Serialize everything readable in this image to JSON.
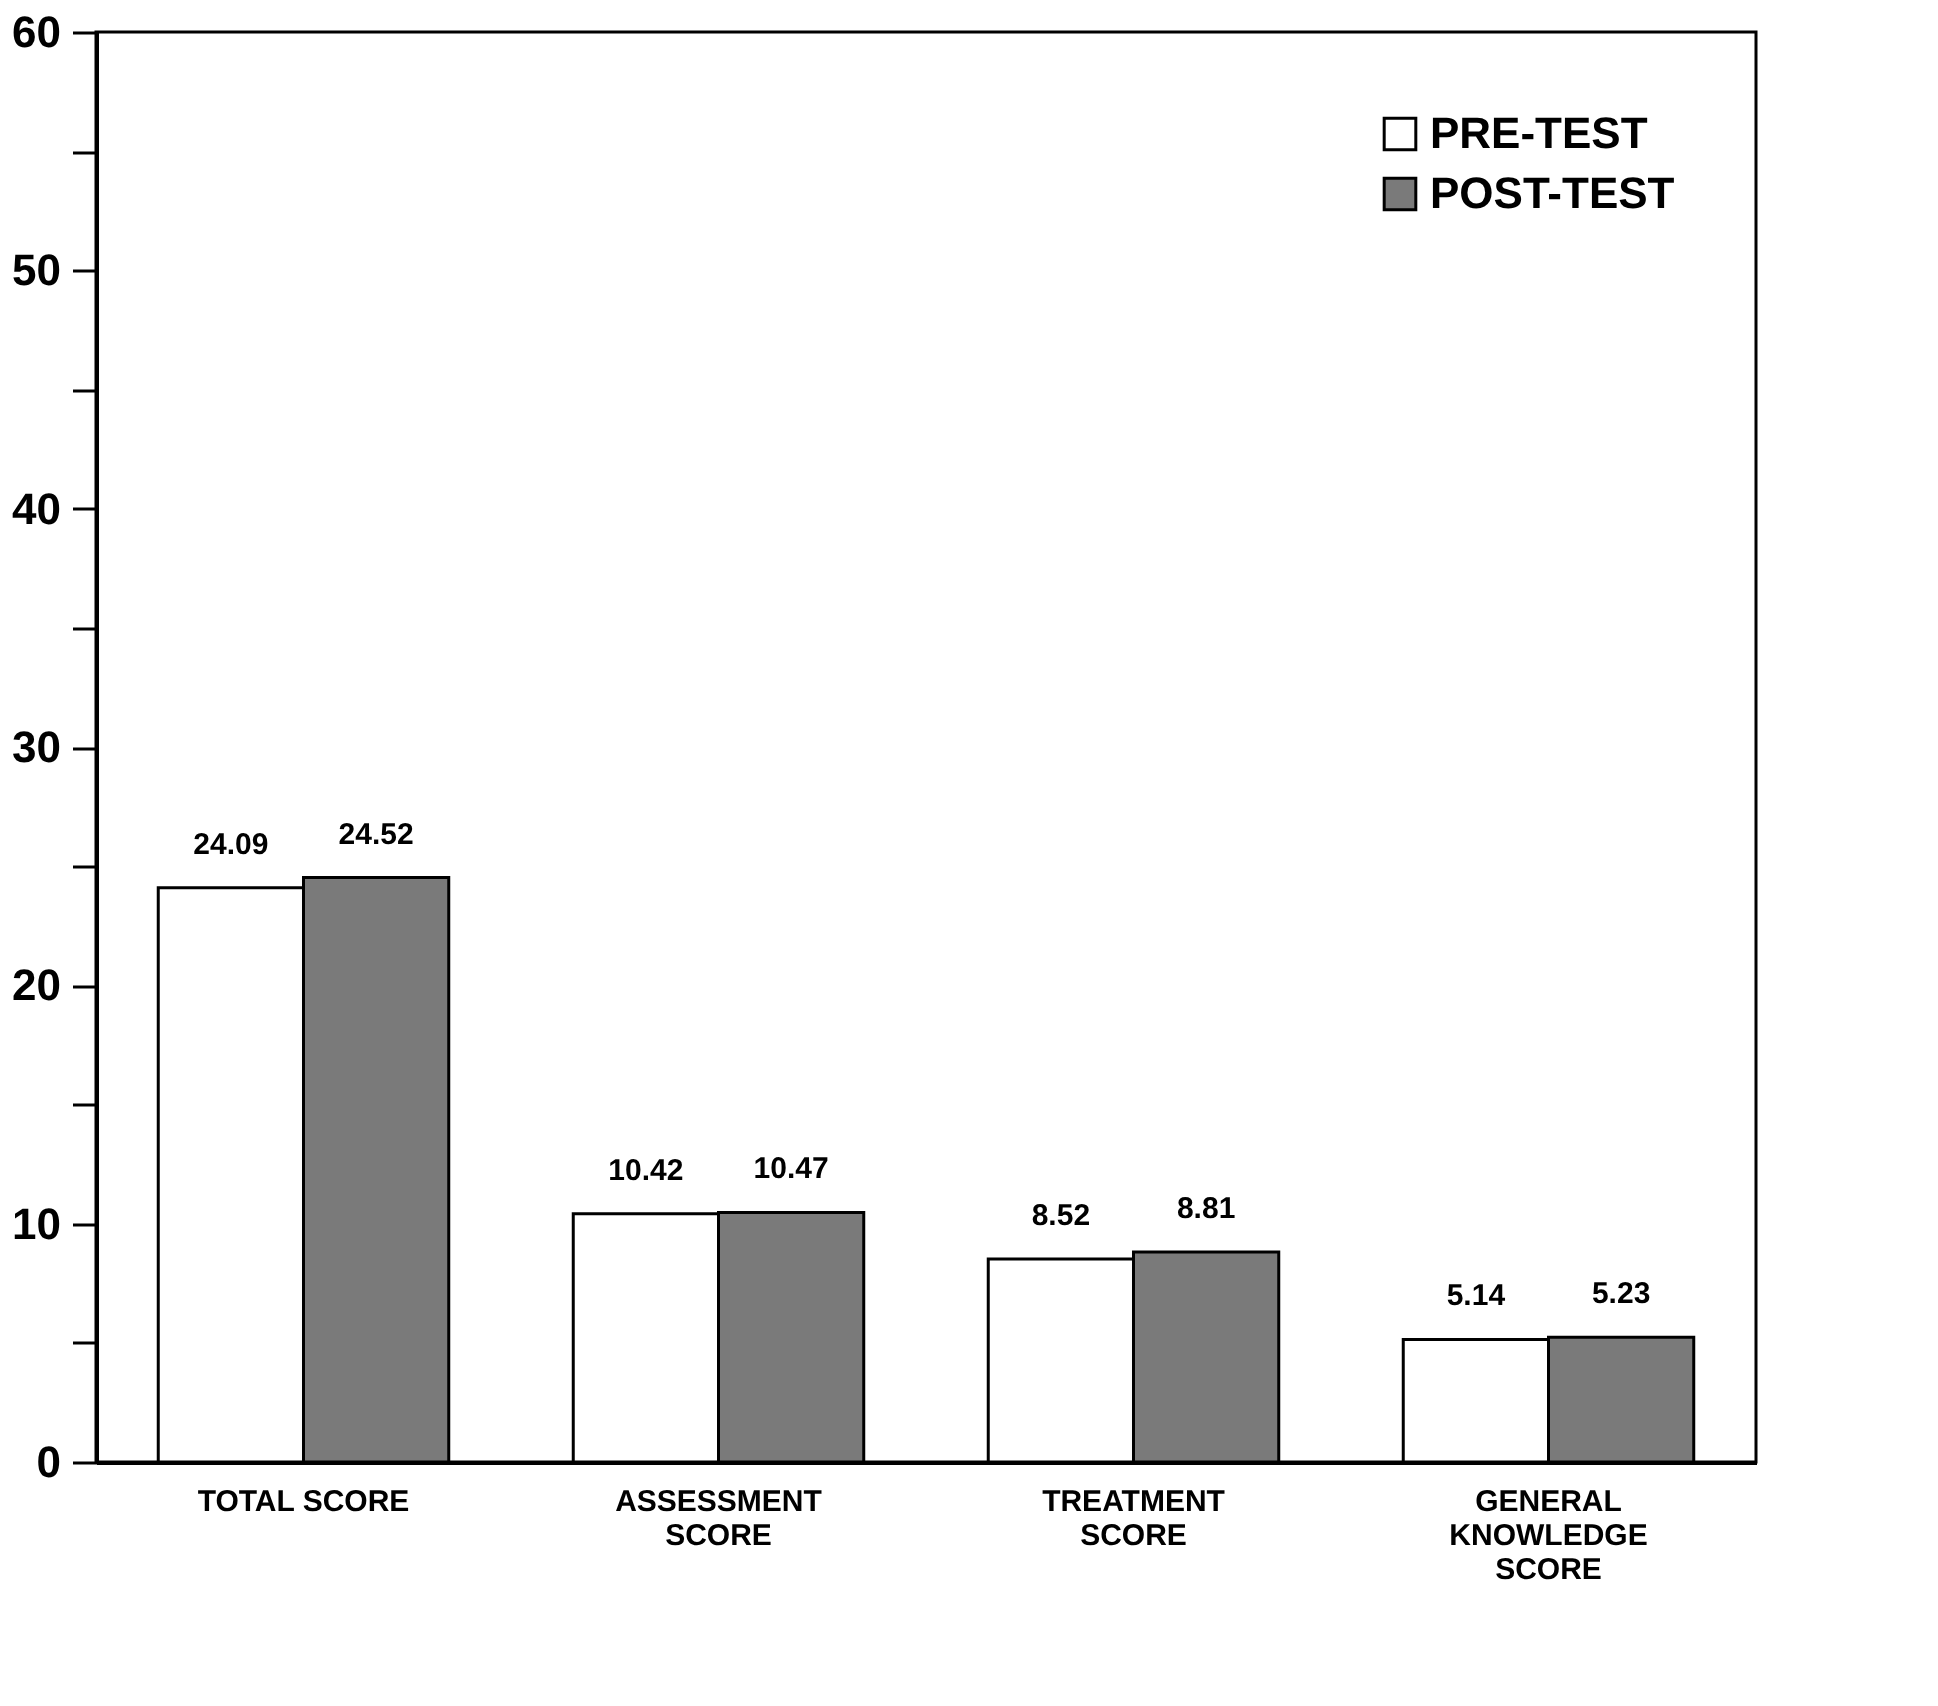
{
  "chart_data": {
    "type": "bar",
    "categories": [
      "TOTAL SCORE",
      "ASSESSMENT SCORE",
      "TREATMENT SCORE",
      "GENERAL KNOWLEDGE SCORE"
    ],
    "series": [
      {
        "name": "PRE-TEST",
        "color": "#ffffff",
        "values": [
          24.09,
          10.42,
          8.52,
          5.14
        ]
      },
      {
        "name": "POST-TEST",
        "color": "#7a7a7a",
        "values": [
          24.52,
          10.47,
          8.81,
          5.23
        ]
      }
    ],
    "ylim": [
      0,
      60
    ],
    "yticks": [
      0,
      {
        "value": 5,
        "label": null
      },
      10,
      {
        "value": 15,
        "label": null
      },
      20,
      {
        "value": 25,
        "label": null
      },
      30,
      {
        "value": 35,
        "label": null
      },
      40,
      {
        "value": 45,
        "label": null
      },
      50,
      {
        "value": 55,
        "label": null
      },
      60
    ],
    "data_labels": true,
    "grid": false,
    "legend": "top right"
  }
}
